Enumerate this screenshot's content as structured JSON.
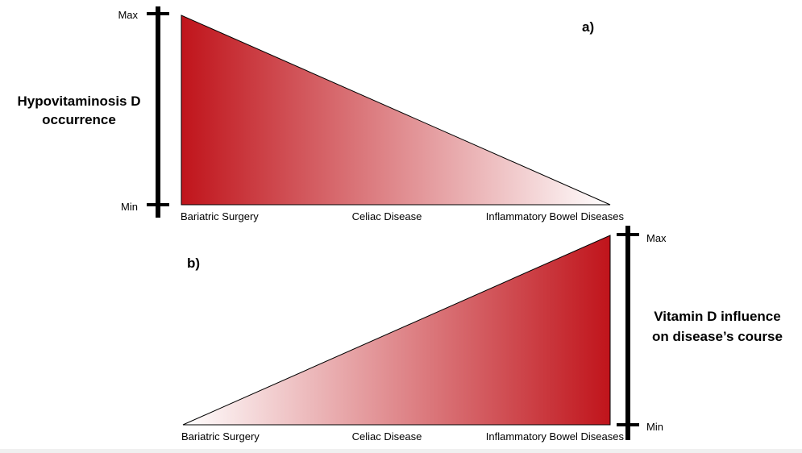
{
  "colors": {
    "gradient_strong": "#c0141b",
    "gradient_weak": "#ffffff",
    "axis": "#000000",
    "outline": "#000000"
  },
  "panel_a": {
    "label": "a)",
    "axis_title_line1": "Hypovitaminosis D",
    "axis_title_line2": "occurrence",
    "axis_max": "Max",
    "axis_min": "Min",
    "categories": [
      "Bariatric Surgery",
      "Celiac Disease",
      "Inflammatory Bowel Diseases"
    ]
  },
  "panel_b": {
    "label": "b)",
    "axis_title_line1": "Vitamin D influence",
    "axis_title_line2": "on disease’s course",
    "axis_max": "Max",
    "axis_min": "Min",
    "categories": [
      "Bariatric Surgery",
      "Celiac Disease",
      "Inflammatory Bowel Diseases"
    ]
  }
}
